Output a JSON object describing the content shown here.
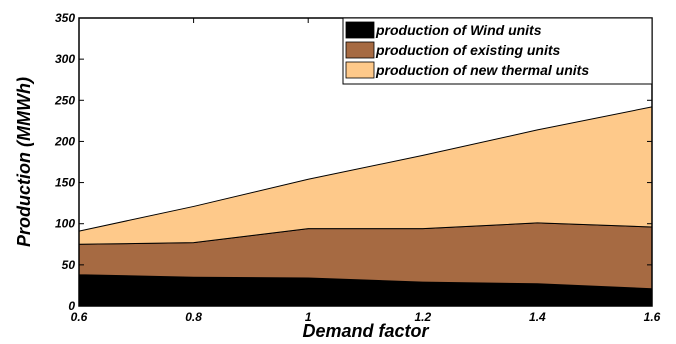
{
  "chart_data": {
    "type": "area",
    "stacked": true,
    "x": [
      0.6,
      0.8,
      1.0,
      1.2,
      1.4,
      1.6
    ],
    "series": [
      {
        "name": "production of Wind units",
        "values": [
          38,
          35,
          34,
          29,
          27,
          21
        ],
        "color": "#000000"
      },
      {
        "name": "production of existing units",
        "values": [
          37,
          42,
          60,
          65,
          74,
          75
        ],
        "color": "#a66a42"
      },
      {
        "name": "production of new thermal units",
        "values": [
          16,
          44,
          60,
          89,
          113,
          146
        ],
        "color": "#fec98a"
      }
    ],
    "xlabel": "Demand factor",
    "ylabel": "Production  (MMWh)",
    "xlim": [
      0.6,
      1.6
    ],
    "ylim": [
      0,
      350
    ],
    "xticks": [
      "0.6",
      "0.8",
      "1",
      "1.2",
      "1.4",
      "1.6"
    ],
    "yticks": [
      "0",
      "50",
      "100",
      "150",
      "200",
      "250",
      "300",
      "350"
    ],
    "grid": false,
    "legend_position": "top-right"
  }
}
